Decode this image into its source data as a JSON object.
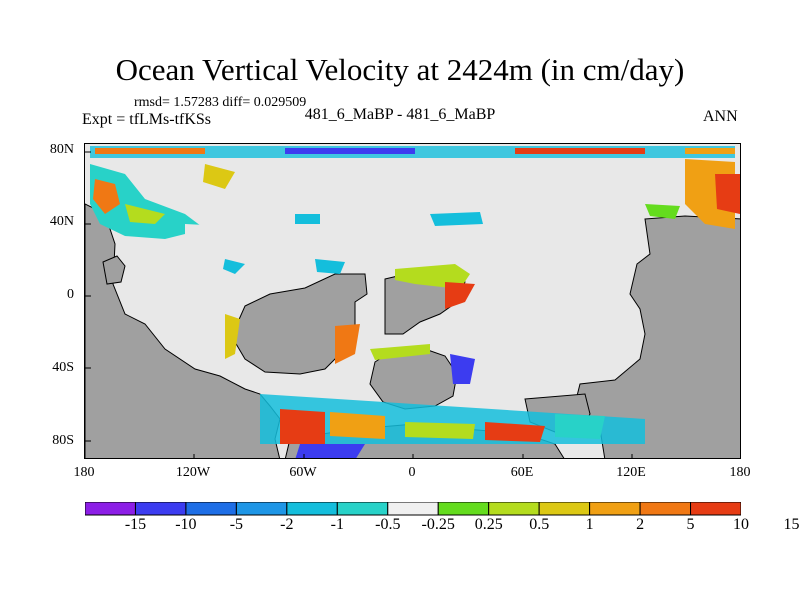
{
  "title": "Ocean Vertical Velocity at 2424m (in cm/day)",
  "stats": "rmsd= 1.57283 diff= 0.029509",
  "expt": "Expt = tfLMs-tfKSs",
  "cases": "481_6_MaBP - 481_6_MaBP",
  "season": "ANN",
  "map": {
    "land_color": "#a0a0a0",
    "ocean_near_zero_color": "#e8e8e8",
    "lat_labels": [
      "80N",
      "40N",
      "0",
      "40S",
      "80S"
    ],
    "lon_labels": [
      "180",
      "120W",
      "60W",
      "0",
      "60E",
      "120E",
      "180"
    ]
  },
  "colorbar": {
    "colors": [
      "#8c1ee6",
      "#3c3cf0",
      "#1e6ee6",
      "#1e96e6",
      "#14bedc",
      "#28d2c8",
      "#f0f0f0",
      "#64dc1e",
      "#b4dc1e",
      "#dcc814",
      "#f0a014",
      "#f07814",
      "#e63c14"
    ],
    "labels": [
      "-15",
      "-10",
      "-5",
      "-2",
      "-1",
      "-0.5",
      "-0.25",
      "0.25",
      "0.5",
      "1",
      "2",
      "5",
      "10",
      "15"
    ]
  }
}
